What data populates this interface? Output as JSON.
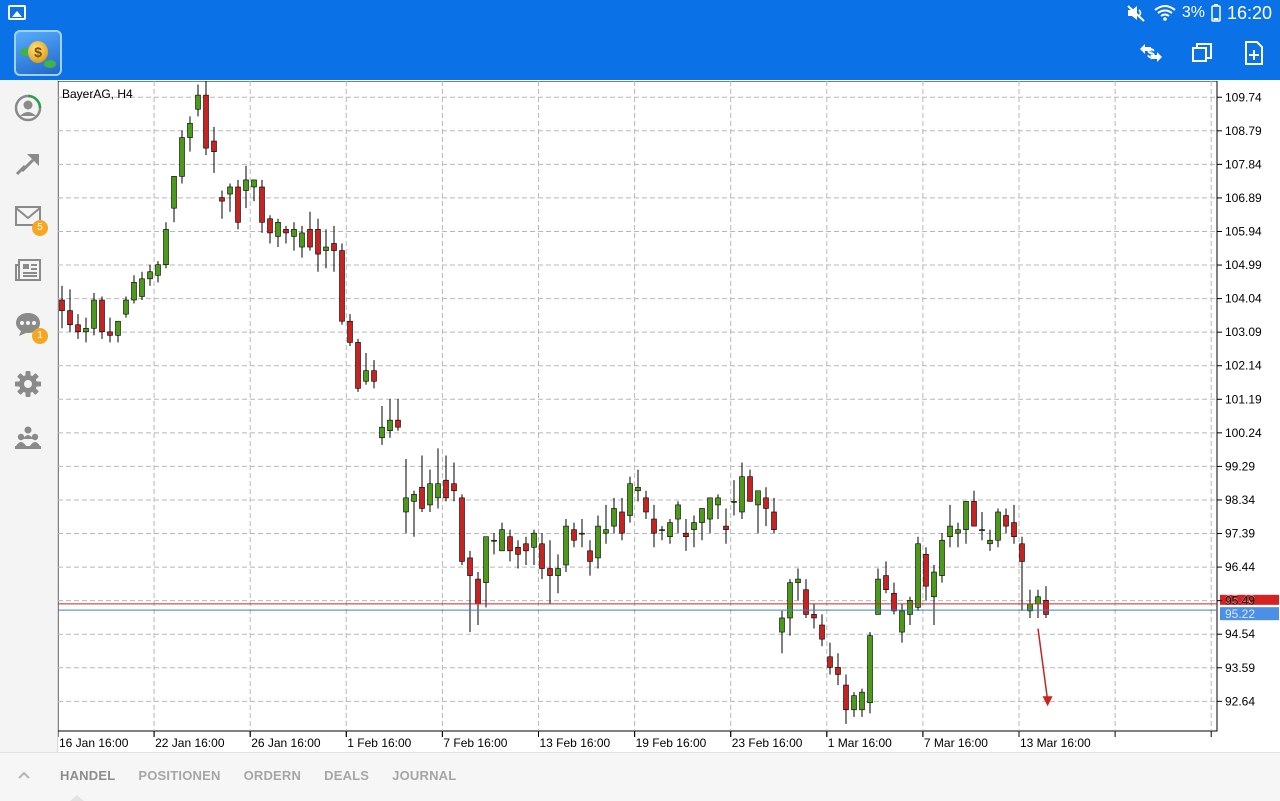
{
  "status_bar": {
    "battery": "3%",
    "time": "16:20",
    "icons": [
      "gallery-icon",
      "mute-icon",
      "wifi-icon",
      "battery-icon"
    ]
  },
  "app_bar": {
    "actions": [
      "trade-icon",
      "windows-icon",
      "new-order-icon"
    ]
  },
  "sidebar": {
    "items": [
      {
        "name": "sidebar-item-account",
        "icon": "account-icon"
      },
      {
        "name": "sidebar-item-trade",
        "icon": "trade-arrow-icon"
      },
      {
        "name": "sidebar-item-mail",
        "icon": "mail-icon",
        "badge": "5"
      },
      {
        "name": "sidebar-item-news",
        "icon": "news-icon"
      },
      {
        "name": "sidebar-item-chat",
        "icon": "chat-icon",
        "badge": "1"
      },
      {
        "name": "sidebar-item-settings",
        "icon": "gear-icon"
      },
      {
        "name": "sidebar-item-community",
        "icon": "community-icon"
      }
    ]
  },
  "bottom_tabs": [
    "HANDEL",
    "POSITIONEN",
    "ORDERN",
    "DEALS",
    "JOURNAL"
  ],
  "colors": {
    "accent": "#0a72e6",
    "bull": "#4c9a1a",
    "bear": "#c72322",
    "ask_line": "#d62222",
    "bid_line": "#3e7fd8"
  },
  "chart_data": {
    "type": "candlestick",
    "title": "BayerAG, H4",
    "ylim": [
      91.8,
      110.2
    ],
    "y_ticks": [
      "109.74",
      "108.79",
      "107.84",
      "106.89",
      "105.94",
      "104.99",
      "104.04",
      "103.09",
      "102.14",
      "101.19",
      "100.24",
      "99.29",
      "98.34",
      "97.39",
      "96.44",
      "95.49",
      "94.54",
      "93.59",
      "92.64"
    ],
    "x_ticks": [
      "16 Jan 16:00",
      "22 Jan 16:00",
      "26 Jan 16:00",
      "1 Feb 16:00",
      "7 Feb 16:00",
      "13 Feb 16:00",
      "19 Feb 16:00",
      "23 Feb 16:00",
      "1 Mar 16:00",
      "7 Mar 16:00",
      "13 Mar 16:00"
    ],
    "ask_label": "95.40",
    "bid_label": "95.22",
    "ask": 95.4,
    "bid": 95.22,
    "candles": [
      [
        104.0,
        104.4,
        103.2,
        103.7
      ],
      [
        103.7,
        104.3,
        103.1,
        103.3
      ],
      [
        103.3,
        103.6,
        102.9,
        103.1
      ],
      [
        103.1,
        103.5,
        102.8,
        103.2
      ],
      [
        103.2,
        104.2,
        103.0,
        104.0
      ],
      [
        104.0,
        104.1,
        102.9,
        103.1
      ],
      [
        103.1,
        103.5,
        102.8,
        103.0
      ],
      [
        103.0,
        103.4,
        102.8,
        103.4
      ],
      [
        103.6,
        104.1,
        103.5,
        104.0
      ],
      [
        104.0,
        104.7,
        103.9,
        104.5
      ],
      [
        104.1,
        104.8,
        104.0,
        104.6
      ],
      [
        104.6,
        105.0,
        104.4,
        104.8
      ],
      [
        104.7,
        105.1,
        104.5,
        105.0
      ],
      [
        105.0,
        106.2,
        104.9,
        106.0
      ],
      [
        106.6,
        107.5,
        106.2,
        107.5
      ],
      [
        107.5,
        108.8,
        107.3,
        108.6
      ],
      [
        108.6,
        109.2,
        108.2,
        109.0
      ],
      [
        109.4,
        110.1,
        109.2,
        109.8
      ],
      [
        109.8,
        110.2,
        108.1,
        108.3
      ],
      [
        108.5,
        108.9,
        107.6,
        108.2
      ],
      [
        106.9,
        107.1,
        106.3,
        106.8
      ],
      [
        107.0,
        107.3,
        106.5,
        107.2
      ],
      [
        107.2,
        107.4,
        106.0,
        106.2
      ],
      [
        107.1,
        107.8,
        106.6,
        107.4
      ],
      [
        107.2,
        107.4,
        106.8,
        107.4
      ],
      [
        107.2,
        107.4,
        105.9,
        106.2
      ],
      [
        106.3,
        106.4,
        105.6,
        105.9
      ],
      [
        105.8,
        106.3,
        105.5,
        106.2
      ],
      [
        106.0,
        106.1,
        105.6,
        105.9
      ],
      [
        105.8,
        106.2,
        105.4,
        106.0
      ],
      [
        105.5,
        106.1,
        105.2,
        105.9
      ],
      [
        106.0,
        106.5,
        105.4,
        105.5
      ],
      [
        106.0,
        106.3,
        104.8,
        105.3
      ],
      [
        105.4,
        106.0,
        104.9,
        105.5
      ],
      [
        105.6,
        106.1,
        104.8,
        105.4
      ],
      [
        105.4,
        105.6,
        103.3,
        103.4
      ],
      [
        103.4,
        103.6,
        102.7,
        102.8
      ],
      [
        102.8,
        102.9,
        101.4,
        101.5
      ],
      [
        101.7,
        102.5,
        101.6,
        102.0
      ],
      [
        102.0,
        102.3,
        101.5,
        101.7
      ],
      [
        100.1,
        101.0,
        99.9,
        100.4
      ],
      [
        100.3,
        101.2,
        100.1,
        100.6
      ],
      [
        100.6,
        101.2,
        100.3,
        100.4
      ],
      [
        98.0,
        99.5,
        97.4,
        98.4
      ],
      [
        98.3,
        98.6,
        97.3,
        98.5
      ],
      [
        98.7,
        99.6,
        98.0,
        98.1
      ],
      [
        98.2,
        99.2,
        98.0,
        98.8
      ],
      [
        98.4,
        99.8,
        98.1,
        98.8
      ],
      [
        98.9,
        99.6,
        98.3,
        98.4
      ],
      [
        98.8,
        99.4,
        98.3,
        98.6
      ],
      [
        98.4,
        98.5,
        96.5,
        96.6
      ],
      [
        96.7,
        96.9,
        94.6,
        96.2
      ],
      [
        96.1,
        96.3,
        94.8,
        95.4
      ],
      [
        96.0,
        97.2,
        95.3,
        97.3
      ],
      [
        97.2,
        97.4,
        96.8,
        97.2
      ],
      [
        96.9,
        97.7,
        96.9,
        97.5
      ],
      [
        97.3,
        97.5,
        96.6,
        96.9
      ],
      [
        97.0,
        97.2,
        96.4,
        96.8
      ],
      [
        97.1,
        97.3,
        96.5,
        96.9
      ],
      [
        97.0,
        97.5,
        96.5,
        97.4
      ],
      [
        97.1,
        97.4,
        96.1,
        96.4
      ],
      [
        96.4,
        97.2,
        95.4,
        96.2
      ],
      [
        96.2,
        96.8,
        95.7,
        96.4
      ],
      [
        96.5,
        97.8,
        96.3,
        97.6
      ],
      [
        97.5,
        97.7,
        97.0,
        97.2
      ],
      [
        97.4,
        97.8,
        97.0,
        97.4
      ],
      [
        96.9,
        97.2,
        96.2,
        96.6
      ],
      [
        96.7,
        97.9,
        96.4,
        97.6
      ],
      [
        97.4,
        98.2,
        97.1,
        97.5
      ],
      [
        97.6,
        98.4,
        97.4,
        98.1
      ],
      [
        98.0,
        98.4,
        97.2,
        97.4
      ],
      [
        97.9,
        99.0,
        97.7,
        98.8
      ],
      [
        98.6,
        99.2,
        98.3,
        98.7
      ],
      [
        98.4,
        98.6,
        97.8,
        98.0
      ],
      [
        97.8,
        98.2,
        97.0,
        97.4
      ],
      [
        97.5,
        97.6,
        97.2,
        97.5
      ],
      [
        97.3,
        97.8,
        97.1,
        97.7
      ],
      [
        97.8,
        98.3,
        97.4,
        98.2
      ],
      [
        97.4,
        97.8,
        96.9,
        97.3
      ],
      [
        97.5,
        97.9,
        97.0,
        97.7
      ],
      [
        97.7,
        98.1,
        97.2,
        98.1
      ],
      [
        97.8,
        98.4,
        97.4,
        98.4
      ],
      [
        98.2,
        98.5,
        97.8,
        98.4
      ],
      [
        97.6,
        98.1,
        97.1,
        97.5
      ],
      [
        98.3,
        98.9,
        97.9,
        98.3
      ],
      [
        98.0,
        99.4,
        97.8,
        99.0
      ],
      [
        99.0,
        99.2,
        98.4,
        98.3
      ],
      [
        98.2,
        98.6,
        97.4,
        98.6
      ],
      [
        98.4,
        98.7,
        97.6,
        98.1
      ],
      [
        98.0,
        98.4,
        97.4,
        97.5
      ],
      [
        94.6,
        95.2,
        94.0,
        95.0
      ],
      [
        95.0,
        96.1,
        94.5,
        96.0
      ],
      [
        96.0,
        96.4,
        95.5,
        96.1
      ],
      [
        95.8,
        96.1,
        95.0,
        95.1
      ],
      [
        95.1,
        95.4,
        94.7,
        95.0
      ],
      [
        94.8,
        95.1,
        94.2,
        94.4
      ],
      [
        93.9,
        94.3,
        93.4,
        93.6
      ],
      [
        93.6,
        94.0,
        93.1,
        93.4
      ],
      [
        93.1,
        93.4,
        92.0,
        92.4
      ],
      [
        92.4,
        92.9,
        92.2,
        92.8
      ],
      [
        92.4,
        93.0,
        92.2,
        92.9
      ],
      [
        92.6,
        94.6,
        92.3,
        94.5
      ],
      [
        95.1,
        96.4,
        95.2,
        96.1
      ],
      [
        96.2,
        96.6,
        95.7,
        95.8
      ],
      [
        95.7,
        96.0,
        95.1,
        95.2
      ],
      [
        94.6,
        95.4,
        94.3,
        95.2
      ],
      [
        95.1,
        95.6,
        94.8,
        95.5
      ],
      [
        95.3,
        97.3,
        95.2,
        97.1
      ],
      [
        96.8,
        97.0,
        95.5,
        95.9
      ],
      [
        95.6,
        96.5,
        94.8,
        96.3
      ],
      [
        96.2,
        97.4,
        96.0,
        97.2
      ],
      [
        97.3,
        98.2,
        97.0,
        97.6
      ],
      [
        97.4,
        97.7,
        97.0,
        97.5
      ],
      [
        97.5,
        98.3,
        97.1,
        98.3
      ],
      [
        98.3,
        98.6,
        97.6,
        97.6
      ],
      [
        97.5,
        98.0,
        97.2,
        97.5
      ],
      [
        97.1,
        97.5,
        96.9,
        97.2
      ],
      [
        97.2,
        98.1,
        97.0,
        98.0
      ],
      [
        97.9,
        98.1,
        97.4,
        97.6
      ],
      [
        97.7,
        98.2,
        97.1,
        97.3
      ],
      [
        97.1,
        97.3,
        95.2,
        96.6
      ],
      [
        95.2,
        95.8,
        95.0,
        95.4
      ],
      [
        95.4,
        95.8,
        95.0,
        95.6
      ],
      [
        95.5,
        95.9,
        95.0,
        95.1
      ]
    ],
    "candle_x_ticks": [
      0,
      12,
      24,
      36,
      48,
      60,
      72,
      84,
      96,
      108,
      120
    ],
    "arrow": {
      "from": [
        122.0,
        94.7
      ],
      "to": [
        123.2,
        92.5
      ]
    }
  }
}
